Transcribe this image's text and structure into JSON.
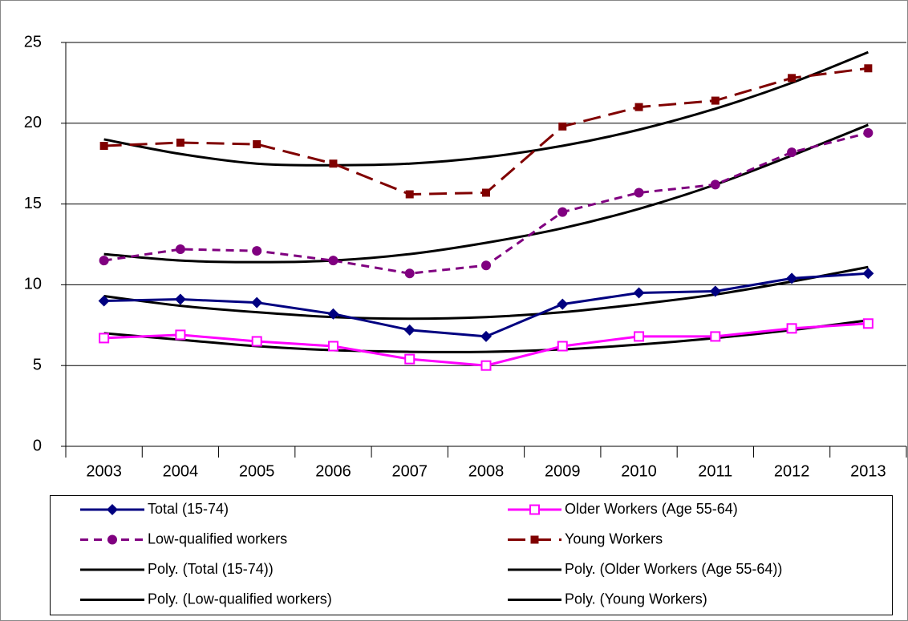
{
  "chart_data": {
    "type": "line",
    "categories": [
      "2003",
      "2004",
      "2005",
      "2006",
      "2007",
      "2008",
      "2009",
      "2010",
      "2011",
      "2012",
      "2013"
    ],
    "ylim": [
      0,
      25
    ],
    "yticks": [
      0,
      5,
      10,
      15,
      20,
      25
    ],
    "grid": true,
    "legend": "bottom",
    "series": [
      {
        "name": "Total (15-74)",
        "color": "#000080",
        "marker": "diamond",
        "dash": "solid",
        "smooth": false,
        "values": [
          9.0,
          9.1,
          8.9,
          8.2,
          7.2,
          6.8,
          8.8,
          9.5,
          9.6,
          10.4,
          10.7
        ]
      },
      {
        "name": "Older Workers (Age 55-64)",
        "color": "#ff00ff",
        "marker": "open-square",
        "dash": "solid",
        "smooth": false,
        "values": [
          6.7,
          6.9,
          6.5,
          6.2,
          5.4,
          5.0,
          6.2,
          6.8,
          6.8,
          7.3,
          7.6
        ]
      },
      {
        "name": "Low-qualified workers",
        "color": "#800080",
        "marker": "circle",
        "dash": "short",
        "smooth": false,
        "values": [
          11.5,
          12.2,
          12.1,
          11.5,
          10.7,
          11.2,
          14.5,
          15.7,
          16.2,
          18.2,
          19.4
        ]
      },
      {
        "name": "Young Workers",
        "color": "#800000",
        "marker": "square",
        "dash": "long",
        "smooth": false,
        "values": [
          18.6,
          18.8,
          18.7,
          17.5,
          15.6,
          15.7,
          19.8,
          21.0,
          21.4,
          22.8,
          23.4
        ]
      },
      {
        "name": "Poly. (Total (15-74))",
        "color": "#000000",
        "marker": "none",
        "dash": "solid",
        "smooth": true,
        "values": [
          9.3,
          8.7,
          8.3,
          8.0,
          7.9,
          8.0,
          8.3,
          8.8,
          9.4,
          10.2,
          11.1
        ]
      },
      {
        "name": "Poly. (Older Workers (Age 55-64))",
        "color": "#000000",
        "marker": "none",
        "dash": "solid",
        "smooth": true,
        "values": [
          7.0,
          6.6,
          6.2,
          5.95,
          5.85,
          5.85,
          6.0,
          6.3,
          6.7,
          7.2,
          7.8
        ]
      },
      {
        "name": "Poly. (Low-qualified workers)",
        "color": "#000000",
        "marker": "none",
        "dash": "solid",
        "smooth": true,
        "values": [
          11.9,
          11.5,
          11.4,
          11.5,
          11.9,
          12.6,
          13.5,
          14.7,
          16.2,
          18.0,
          19.9
        ]
      },
      {
        "name": "Poly. (Young Workers)",
        "color": "#000000",
        "marker": "none",
        "dash": "solid",
        "smooth": true,
        "values": [
          19.0,
          18.1,
          17.5,
          17.4,
          17.5,
          17.9,
          18.6,
          19.6,
          20.9,
          22.5,
          24.4
        ]
      }
    ]
  }
}
